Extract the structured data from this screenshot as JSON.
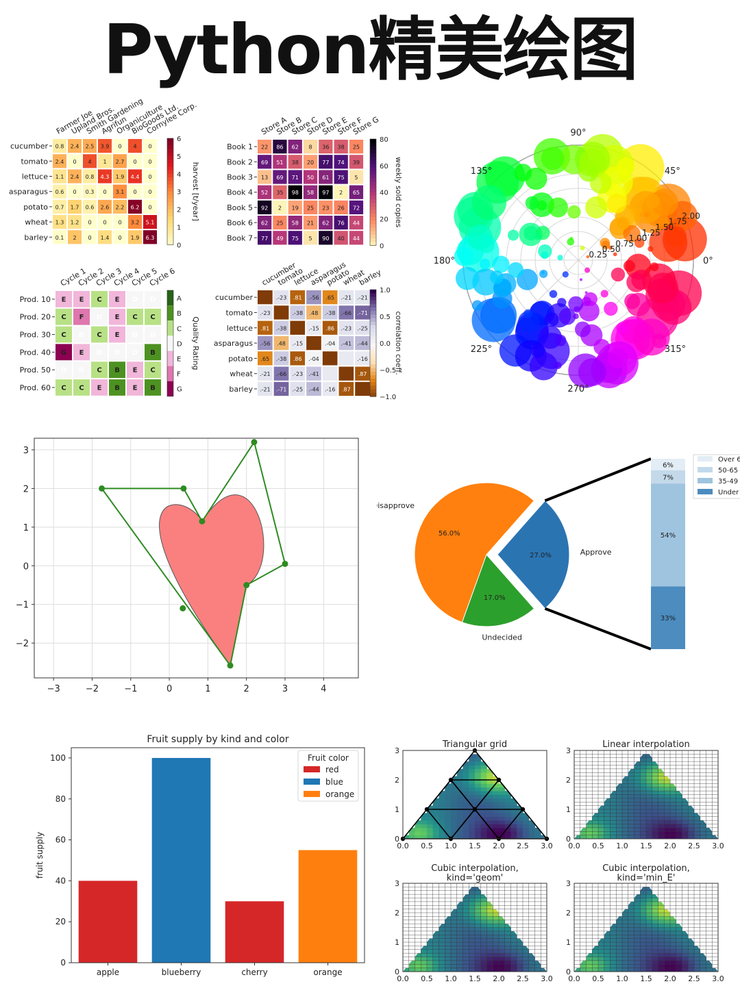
{
  "page": {
    "title": "Python精美绘图"
  },
  "chart_data": [
    {
      "type": "heatmap",
      "rows": [
        "cucumber",
        "tomato",
        "lettuce",
        "asparagus",
        "potato",
        "wheat",
        "barley"
      ],
      "columns": [
        "Farmer Joe",
        "Upland Bros.",
        "Smith Gardening",
        "Agrifun",
        "Organiculture",
        "BioGoods Ltd.",
        "Cornylee Corp."
      ],
      "values": [
        [
          0.8,
          2.4,
          2.5,
          3.9,
          0.0,
          4.0,
          0.0
        ],
        [
          2.4,
          0.0,
          4.0,
          1.0,
          2.7,
          0.0,
          0.0
        ],
        [
          1.1,
          2.4,
          0.8,
          4.3,
          1.9,
          4.4,
          0.0
        ],
        [
          0.6,
          0.0,
          0.3,
          0.0,
          3.1,
          0.0,
          0.0
        ],
        [
          0.7,
          1.7,
          0.6,
          2.6,
          2.2,
          6.2,
          0.0
        ],
        [
          1.3,
          1.2,
          0.0,
          0.0,
          0.0,
          3.2,
          5.1
        ],
        [
          0.1,
          2.0,
          0.0,
          1.4,
          0.0,
          1.9,
          6.3
        ]
      ],
      "colorbar": {
        "label": "harvest [t/year]",
        "ticks": [
          "0",
          "1",
          "2",
          "3",
          "4",
          "5",
          "6"
        ],
        "range": [
          0,
          6.3
        ]
      },
      "colormap": "YlOrRd"
    },
    {
      "type": "heatmap",
      "rows": [
        "Book 1",
        "Book 2",
        "Book 3",
        "Book 4",
        "Book 5",
        "Book 6",
        "Book 7"
      ],
      "columns": [
        "Store A",
        "Store B",
        "Store C",
        "Store D",
        "Store E",
        "Store F",
        "Store G"
      ],
      "values": [
        [
          22,
          86,
          62,
          8,
          36,
          38,
          25
        ],
        [
          69,
          51,
          38,
          20,
          77,
          74,
          39
        ],
        [
          13,
          69,
          71,
          50,
          61,
          75,
          5
        ],
        [
          52,
          35,
          98,
          58,
          97,
          2,
          65
        ],
        [
          92,
          2,
          19,
          25,
          23,
          26,
          72
        ],
        [
          62,
          25,
          58,
          21,
          62,
          76,
          44
        ],
        [
          77,
          49,
          75,
          5,
          90,
          40,
          44
        ]
      ],
      "colorbar": {
        "label": "weekly sold copies",
        "ticks": [
          "0",
          "20",
          "40",
          "60",
          "80"
        ],
        "range": [
          0,
          98
        ]
      },
      "colormap": "magma"
    },
    {
      "type": "heatmap",
      "rows": [
        "Prod. 10",
        "Prod. 20",
        "Prod. 30",
        "Prod. 40",
        "Prod. 50",
        "Prod. 60"
      ],
      "columns": [
        "Cycle 1",
        "Cycle 2",
        "Cycle 3",
        "Cycle 4",
        "Cycle 5",
        "Cycle 6"
      ],
      "values": [
        [
          "E",
          "E",
          "C",
          "E",
          "D",
          "D"
        ],
        [
          "C",
          "F",
          "D",
          "E",
          "C",
          "C"
        ],
        [
          "C",
          "D",
          "C",
          "E",
          "D",
          "D"
        ],
        [
          "G",
          "E",
          "D",
          "D",
          "D",
          "B"
        ],
        [
          "D",
          "D",
          "C",
          "B",
          "E",
          "C"
        ],
        [
          "C",
          "C",
          "E",
          "B",
          "E",
          "B"
        ]
      ],
      "colorbar": {
        "label": "Quality Rating",
        "ticks": [
          "A",
          "B",
          "C",
          "D",
          "E",
          "F",
          "G"
        ]
      },
      "colormap": "PiYG"
    },
    {
      "type": "heatmap",
      "rows": [
        "cucumber",
        "tomato",
        "lettuce",
        "asparagus",
        "potato",
        "wheat",
        "barley"
      ],
      "columns": [
        "cucumber",
        "tomato",
        "lettuce",
        "asparagus",
        "potato",
        "wheat",
        "barley"
      ],
      "values": [
        [
          1,
          -0.23,
          0.81,
          -0.56,
          0.65,
          -0.21,
          -0.21
        ],
        [
          -0.23,
          1,
          -0.38,
          0.48,
          -0.38,
          -0.66,
          -0.71
        ],
        [
          0.81,
          -0.38,
          1,
          -0.15,
          0.86,
          -0.23,
          -0.25
        ],
        [
          -0.56,
          0.48,
          -0.15,
          1,
          -0.04,
          -0.41,
          -0.44
        ],
        [
          0.65,
          -0.38,
          0.86,
          -0.04,
          1,
          -0.16,
          -0.16
        ],
        [
          -0.21,
          -0.66,
          -0.23,
          -0.41,
          -0.16,
          1,
          0.87
        ],
        [
          -0.21,
          -0.71,
          -0.25,
          -0.44,
          -0.16,
          0.87,
          1
        ]
      ],
      "cell_labels": [
        [
          "",
          ".-23",
          ".81",
          ".-56",
          ".65",
          ".-21",
          ".-21"
        ],
        [
          ".-23",
          "",
          ".-38",
          ".48",
          ".-38",
          ".-66",
          ".-71"
        ],
        [
          ".81",
          ".-38",
          "",
          ".-15",
          ".86",
          ".-23",
          ".-25"
        ],
        [
          ".-56",
          ".48",
          ".-15",
          "",
          ".-04",
          ".-41",
          ".-44"
        ],
        [
          ".65",
          ".-38",
          ".86",
          ".-04",
          "",
          "",
          ".-16"
        ],
        [
          ".-21",
          ".-66",
          ".-23",
          ".-41",
          "",
          "",
          ".87"
        ],
        [
          ".-21",
          ".-71",
          ".-25",
          ".-44",
          ".-16",
          ".87",
          ""
        ]
      ],
      "colorbar": {
        "label": "correlation coeff.",
        "ticks": [
          "1.0",
          "0.5",
          "0.0",
          "−0.5",
          "−1.0"
        ],
        "range": [
          -1,
          1
        ]
      },
      "colormap": "PuOr"
    },
    {
      "type": "scatter",
      "projection": "polar",
      "angle_ticks": [
        "0°",
        "45°",
        "90°",
        "135°",
        "180°",
        "225°",
        "270°",
        "315°"
      ],
      "radial_ticks": [
        "0.25",
        "0.50",
        "0.75",
        "1.00",
        "1.25",
        "1.50",
        "1.75",
        "2.00"
      ],
      "radial_range": [
        0,
        2
      ],
      "colormap": "hsv",
      "point_count": 150
    },
    {
      "type": "line",
      "x_ticks": [
        "−3",
        "−2",
        "−1",
        "0",
        "1",
        "2",
        "3",
        "4"
      ],
      "y_ticks": [
        "−2",
        "−1",
        "0",
        "1",
        "2",
        "3"
      ],
      "xlim": [
        -3.5,
        4.9
      ],
      "ylim": [
        -2.9,
        3.3
      ],
      "grid": true,
      "control_points": [
        [
          1.58,
          -2.58
        ],
        [
          -1.75,
          2.0
        ],
        [
          0.37,
          2.0
        ],
        [
          0.85,
          1.15
        ],
        [
          2.2,
          3.2
        ],
        [
          3.0,
          0.05
        ],
        [
          2.0,
          -0.5
        ],
        [
          0.35,
          -1.1
        ]
      ],
      "polygon_order": [
        [
          -1.75,
          2.0
        ],
        [
          0.37,
          2.0
        ],
        [
          0.85,
          1.15
        ],
        [
          2.2,
          3.2
        ],
        [
          3.0,
          0.05
        ],
        [
          2.0,
          -0.5
        ],
        [
          1.58,
          -2.58
        ],
        [
          -1.75,
          2.0
        ]
      ],
      "path_color": "#fa8080",
      "line_color": "#2e8b22"
    },
    {
      "type": "pie",
      "slices": [
        {
          "label": "Approve",
          "value": 27.0,
          "pct": "27.0%",
          "color": "#2b74b2"
        },
        {
          "label": "Disapprove",
          "value": 56.0,
          "pct": "56.0%",
          "color": "#ff800e"
        },
        {
          "label": "Undecided",
          "value": 17.0,
          "pct": "17.0%",
          "color": "#2ca02c"
        }
      ],
      "stacked_bar": {
        "segments": [
          {
            "label": "Under",
            "value": 33,
            "pct": "33%"
          },
          {
            "label": "35-49",
            "value": 54,
            "pct": "54%"
          },
          {
            "label": "50-65",
            "value": 7,
            "pct": "7%"
          },
          {
            "label": "Over",
            "value": 6,
            "pct": "6%"
          }
        ],
        "legend": [
          "Over 6",
          "50-65",
          "35-49",
          "Under"
        ]
      }
    },
    {
      "type": "bar",
      "title": "Fruit supply by kind and color",
      "ylabel": "fruit supply",
      "categories": [
        "apple",
        "blueberry",
        "cherry",
        "orange"
      ],
      "values": [
        40,
        100,
        30,
        55
      ],
      "bar_colors": [
        "#d62728",
        "#1f77b4",
        "#d62728",
        "#ff7f0e"
      ],
      "ylim": [
        0,
        105
      ],
      "y_ticks": [
        "0",
        "20",
        "40",
        "60",
        "80",
        "100"
      ],
      "legend": {
        "title": "Fruit color",
        "entries": [
          {
            "label": "red",
            "color": "#d62728"
          },
          {
            "label": "blue",
            "color": "#1f77b4"
          },
          {
            "label": "orange",
            "color": "#ff7f0e"
          }
        ]
      }
    },
    {
      "type": "heatmap",
      "panels": [
        {
          "title": "Triangular grid",
          "grid": "triangular"
        },
        {
          "title": "Linear interpolation",
          "grid": "regular"
        },
        {
          "title": "Cubic interpolation,",
          "subtitle": "kind='geom'",
          "grid": "regular"
        },
        {
          "title": "Cubic interpolation,",
          "subtitle": "kind='min_E'",
          "grid": "regular"
        }
      ],
      "x_ticks": [
        "0.0",
        "0.5",
        "1.0",
        "1.5",
        "2.0",
        "2.5",
        "3.0"
      ],
      "y_ticks": [
        "0",
        "1",
        "2",
        "3"
      ],
      "xlim": [
        0,
        3
      ],
      "ylim": [
        0,
        3
      ],
      "colormap": "viridis"
    }
  ]
}
